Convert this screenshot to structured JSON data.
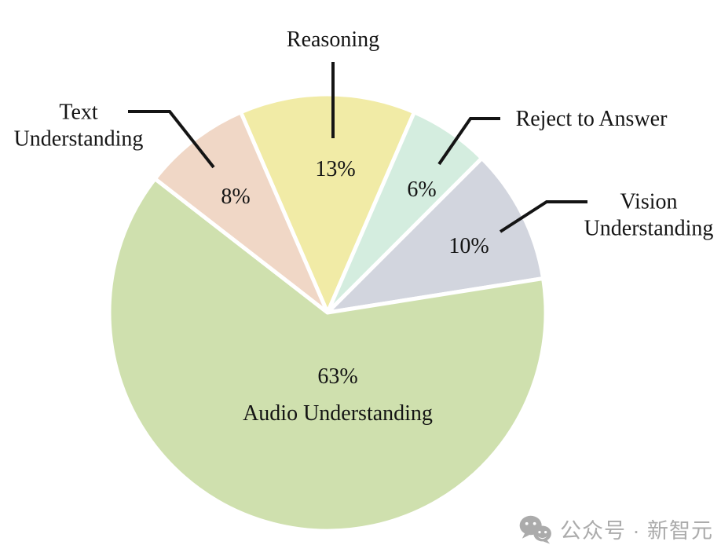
{
  "chart_data": {
    "type": "pie",
    "title": "",
    "legend": false,
    "background": "#ffffff",
    "start_angle_deg": -23.4,
    "direction": "clockwise",
    "slice_gap_color": "#ffffff",
    "slices": [
      {
        "label": "Reasoning",
        "value": 13,
        "pct_label": "13%",
        "color": "#f1eba6"
      },
      {
        "label": "Reject to Answer",
        "value": 6,
        "pct_label": "6%",
        "color": "#d4eddf"
      },
      {
        "label": "Vision Understanding",
        "value": 10,
        "pct_label": "10%",
        "color": "#d2d5de"
      },
      {
        "label": "Audio Understanding",
        "value": 63,
        "pct_label": "63%",
        "color": "#cfe0ae"
      },
      {
        "label": "Text Understanding",
        "value": 8,
        "pct_label": "8%",
        "color": "#f0d7c6"
      }
    ]
  },
  "watermark": {
    "icon": "wechat-icon",
    "text": "公众号 · 新智元",
    "color": "#ababab"
  }
}
